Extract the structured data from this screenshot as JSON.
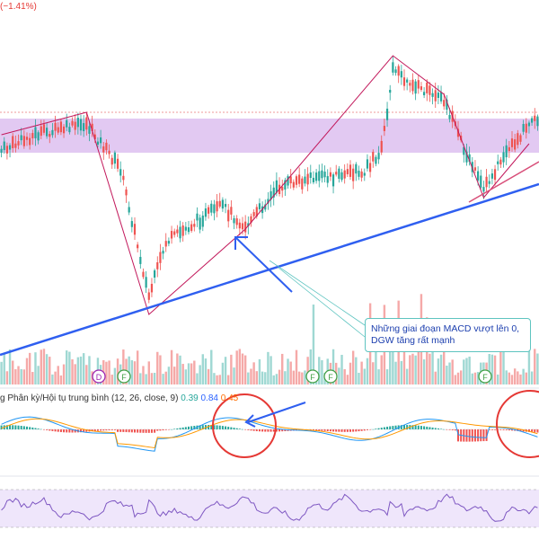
{
  "header": {
    "change_text": "(−1.41%)"
  },
  "macd_legend": {
    "label": "g Phân kỳ/Hội tụ trung bình (12, 26, close, 9)",
    "hist_value": "0.39",
    "macd_value": "0.84",
    "signal_value": "0.45"
  },
  "annotation": {
    "text": "Những giai đoạn MACD vượt lên 0, DGW tăng rất mạnh"
  },
  "markers": [
    {
      "label": "D",
      "kind": "dividend",
      "color": "#9c27b0"
    },
    {
      "label": "F",
      "kind": "financials",
      "color": "#43a047"
    },
    {
      "label": "F",
      "kind": "financials",
      "color": "#43a047"
    },
    {
      "label": "F",
      "kind": "financials",
      "color": "#43a047"
    },
    {
      "label": "F",
      "kind": "financials",
      "color": "#43a047"
    }
  ],
  "colors": {
    "up": "#26a69a",
    "down": "#ef5350",
    "zone": "#d9b8ec",
    "trendline": "#2f5ff0",
    "zigzag": "#c2185b",
    "macd": "#2196f3",
    "signal": "#ff9800",
    "rsi": "#7e57c2",
    "circle": "#e53935"
  },
  "chart_data": {
    "type": "candlestick",
    "title": "",
    "xlabel": "",
    "ylabel": "",
    "grid": false,
    "zigzag_points": [
      [
        0,
        150
      ],
      [
        12,
        140
      ],
      [
        30,
        125
      ],
      [
        52,
        350
      ],
      [
        86,
        255
      ],
      [
        138,
        62
      ],
      [
        156,
        105
      ],
      [
        170,
        220
      ],
      [
        186,
        160
      ]
    ],
    "trendlines": [
      [
        [
          0,
          395
        ],
        [
          190,
          205
        ]
      ]
    ]
  }
}
